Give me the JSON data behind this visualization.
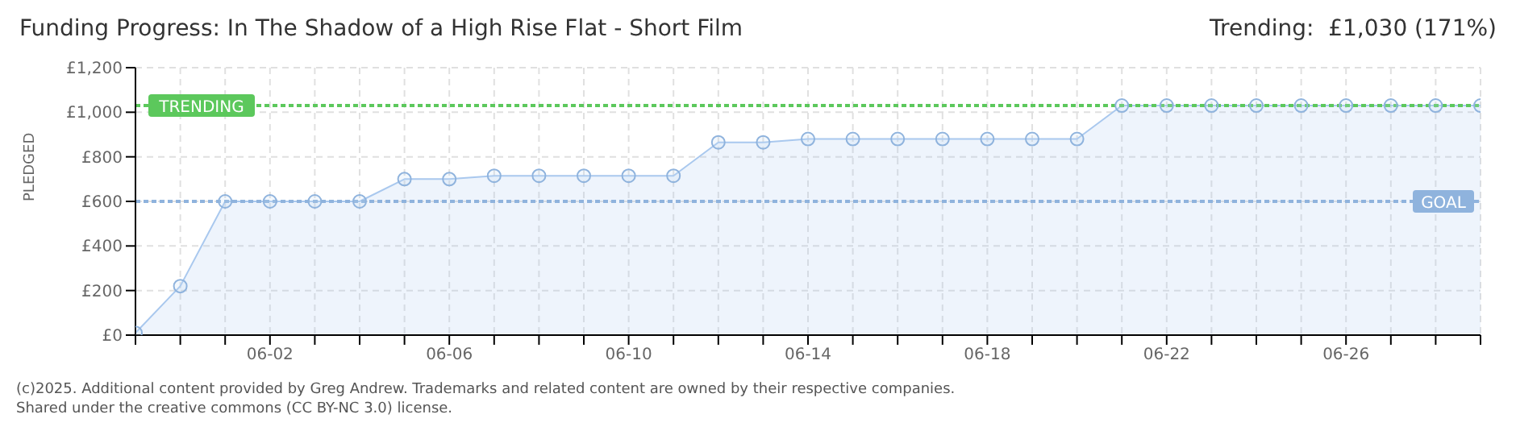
{
  "chart_data": {
    "type": "area",
    "title": "Funding Progress: In The Shadow of a High Rise Flat - Short Film",
    "subtitle": "Trending:  £1,030 (171%)",
    "ylabel": "PLEDGED",
    "x": [
      "2025-05-30",
      "2025-05-31",
      "2025-06-01",
      "2025-06-02",
      "2025-06-03",
      "2025-06-04",
      "2025-06-05",
      "2025-06-06",
      "2025-06-07",
      "2025-06-08",
      "2025-06-09",
      "2025-06-10",
      "2025-06-11",
      "2025-06-12",
      "2025-06-13",
      "2025-06-14",
      "2025-06-15",
      "2025-06-16",
      "2025-06-17",
      "2025-06-18",
      "2025-06-19",
      "2025-06-20",
      "2025-06-21",
      "2025-06-22",
      "2025-06-23",
      "2025-06-24",
      "2025-06-25",
      "2025-06-26",
      "2025-06-27",
      "2025-06-28",
      "2025-06-29"
    ],
    "series": [
      {
        "color": "#a9c8ee",
        "values": [
          10,
          220,
          600,
          600,
          600,
          600,
          700,
          700,
          715,
          715,
          715,
          715,
          715,
          865,
          865,
          880,
          880,
          880,
          880,
          880,
          880,
          880,
          1030,
          1030,
          1030,
          1030,
          1030,
          1030,
          1030,
          1030,
          1030
        ]
      }
    ],
    "xlim": [
      "2025-05-30",
      "2025-06-29"
    ],
    "xticks": [
      {
        "value": "2025-05-30",
        "label": null
      },
      {
        "value": "2025-05-31",
        "label": null
      },
      {
        "value": "2025-06-01",
        "label": null
      },
      {
        "value": "2025-06-02",
        "label": "06-02"
      },
      {
        "value": "2025-06-03",
        "label": null
      },
      {
        "value": "2025-06-04",
        "label": null
      },
      {
        "value": "2025-06-05",
        "label": null
      },
      {
        "value": "2025-06-06",
        "label": "06-06"
      },
      {
        "value": "2025-06-07",
        "label": null
      },
      {
        "value": "2025-06-08",
        "label": null
      },
      {
        "value": "2025-06-09",
        "label": null
      },
      {
        "value": "2025-06-10",
        "label": "06-10"
      },
      {
        "value": "2025-06-11",
        "label": null
      },
      {
        "value": "2025-06-12",
        "label": null
      },
      {
        "value": "2025-06-13",
        "label": null
      },
      {
        "value": "2025-06-14",
        "label": "06-14"
      },
      {
        "value": "2025-06-15",
        "label": null
      },
      {
        "value": "2025-06-16",
        "label": null
      },
      {
        "value": "2025-06-17",
        "label": null
      },
      {
        "value": "2025-06-18",
        "label": "06-18"
      },
      {
        "value": "2025-06-19",
        "label": null
      },
      {
        "value": "2025-06-20",
        "label": null
      },
      {
        "value": "2025-06-21",
        "label": null
      },
      {
        "value": "2025-06-22",
        "label": "06-22"
      },
      {
        "value": "2025-06-23",
        "label": null
      },
      {
        "value": "2025-06-24",
        "label": null
      },
      {
        "value": "2025-06-25",
        "label": null
      },
      {
        "value": "2025-06-26",
        "label": "06-26"
      },
      {
        "value": "2025-06-27",
        "label": null
      },
      {
        "value": "2025-06-28",
        "label": null
      },
      {
        "value": "2025-06-29",
        "label": null
      }
    ],
    "ylim": [
      0,
      1200
    ],
    "yticks": [
      {
        "value": 0,
        "label": "£0"
      },
      {
        "value": 200,
        "label": "£200"
      },
      {
        "value": 400,
        "label": "£400"
      },
      {
        "value": 600,
        "label": "£600"
      },
      {
        "value": 800,
        "label": "£800"
      },
      {
        "value": 1000,
        "label": "£1,000"
      },
      {
        "value": 1200,
        "label": "£1,200"
      }
    ],
    "grid": true,
    "marker": "circle",
    "line_style": "solid",
    "ref_lines": [
      {
        "axis": "y",
        "value": 1030,
        "label": "TRENDING",
        "color": "#5cc85c",
        "line_style": "dotted"
      },
      {
        "axis": "y",
        "value": 600,
        "label": "GOAL",
        "color": "#8fb3dd",
        "line_style": "dotted"
      }
    ],
    "annotations": [
      "(c)2025. Additional content provided by Greg Andrew. Trademarks and related content are owned by their respective companies.",
      "Shared under the creative commons (CC BY-NC 3.0) license."
    ]
  }
}
